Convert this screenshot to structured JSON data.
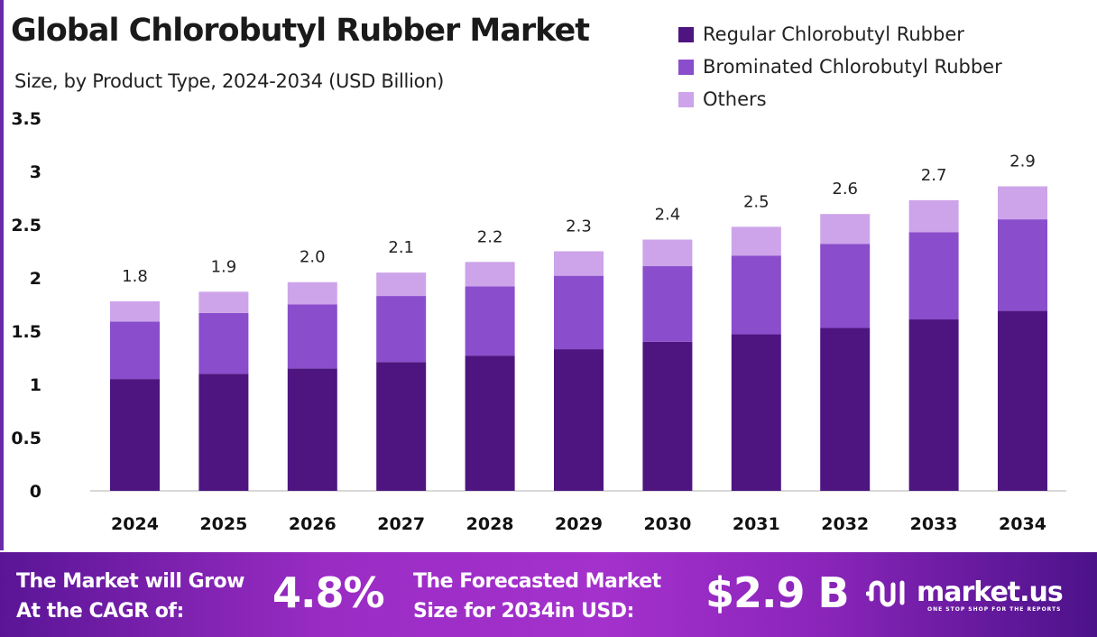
{
  "title": "Global Chlorobutyl Rubber Market",
  "subtitle": "Size, by Product Type, 2024-2034 (USD Billion)",
  "colors": {
    "regular": "#4e1580",
    "brominated": "#8a4dcc",
    "others": "#cda4ea",
    "border": "#6a2aa8"
  },
  "chart_data": {
    "type": "bar",
    "stacked": true,
    "title": "Global Chlorobutyl Rubber Market",
    "subtitle": "Size, by Product Type, 2024-2034 (USD Billion)",
    "categories": [
      "2024",
      "2025",
      "2026",
      "2027",
      "2028",
      "2029",
      "2030",
      "2031",
      "2032",
      "2033",
      "2034"
    ],
    "series": [
      {
        "name": "Regular Chlorobutyl Rubber",
        "values": [
          1.05,
          1.1,
          1.15,
          1.21,
          1.27,
          1.33,
          1.4,
          1.47,
          1.53,
          1.61,
          1.69
        ]
      },
      {
        "name": "Brominated Chlorobutyl Rubber",
        "values": [
          0.54,
          0.57,
          0.6,
          0.62,
          0.65,
          0.69,
          0.71,
          0.74,
          0.79,
          0.82,
          0.86
        ]
      },
      {
        "name": "Others",
        "values": [
          0.19,
          0.2,
          0.21,
          0.22,
          0.23,
          0.23,
          0.25,
          0.27,
          0.28,
          0.3,
          0.31
        ]
      }
    ],
    "totals_labels": [
      "1.8",
      "1.9",
      "2.0",
      "2.1",
      "2.2",
      "2.3",
      "2.4",
      "2.5",
      "2.6",
      "2.7",
      "2.9"
    ],
    "yticks": [
      "0",
      "0.5",
      "1",
      "1.5",
      "2",
      "2.5",
      "3",
      "3.5"
    ],
    "ylim": [
      0,
      3.5
    ],
    "grid": false,
    "legend": "top-right",
    "xlabel": "",
    "ylabel": ""
  },
  "footer": {
    "cagr_text_1": "The Market will Grow",
    "cagr_text_2": "At the CAGR of:",
    "cagr_value": "4.8%",
    "forecast_text_1": "The Forecasted Market",
    "forecast_text_2": "Size for 2034in USD:",
    "forecast_value": "$2.9 B",
    "logo_text": "market.us",
    "logo_tagline": "ONE STOP SHOP FOR THE REPORTS"
  }
}
